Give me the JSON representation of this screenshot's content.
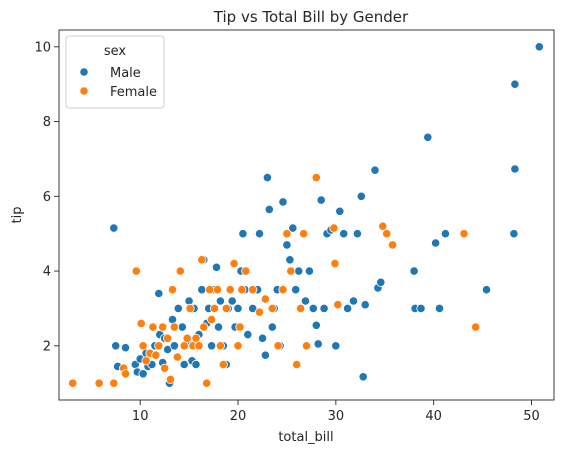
{
  "chart_data": {
    "type": "scatter",
    "title": "Tip vs Total Bill by Gender",
    "xlabel": "total_bill",
    "ylabel": "tip",
    "xlim": [
      1.7,
      52.3
    ],
    "ylim": [
      0.55,
      10.45
    ],
    "xticks": [
      10,
      20,
      30,
      40,
      50
    ],
    "yticks": [
      2,
      4,
      6,
      8,
      10
    ],
    "grid": false,
    "legend": {
      "title": "sex",
      "placement": "top-left"
    },
    "series": [
      {
        "name": "Male",
        "color": "#1f77b4",
        "points": [
          [
            7.3,
            5.15
          ],
          [
            7.5,
            2.0
          ],
          [
            7.7,
            1.45
          ],
          [
            8.5,
            1.95
          ],
          [
            9.5,
            1.5
          ],
          [
            9.7,
            1.3
          ],
          [
            10.0,
            1.65
          ],
          [
            10.3,
            1.25
          ],
          [
            10.6,
            1.8
          ],
          [
            10.8,
            1.45
          ],
          [
            11.2,
            1.5
          ],
          [
            11.5,
            2.0
          ],
          [
            11.9,
            3.4
          ],
          [
            12.0,
            2.3
          ],
          [
            12.3,
            1.55
          ],
          [
            12.5,
            2.2
          ],
          [
            12.8,
            1.9
          ],
          [
            13.0,
            1.0
          ],
          [
            13.3,
            2.7
          ],
          [
            13.5,
            2.0
          ],
          [
            13.9,
            3.0
          ],
          [
            14.3,
            2.5
          ],
          [
            14.5,
            1.5
          ],
          [
            14.8,
            2.1
          ],
          [
            15.0,
            3.2
          ],
          [
            15.3,
            1.6
          ],
          [
            15.5,
            3.0
          ],
          [
            15.7,
            1.5
          ],
          [
            16.0,
            2.3
          ],
          [
            16.3,
            3.5
          ],
          [
            16.5,
            4.3
          ],
          [
            16.8,
            2.6
          ],
          [
            17.0,
            3.0
          ],
          [
            17.3,
            2.0
          ],
          [
            17.5,
            3.5
          ],
          [
            17.8,
            4.1
          ],
          [
            18.0,
            2.5
          ],
          [
            18.2,
            3.2
          ],
          [
            18.5,
            2.0
          ],
          [
            18.8,
            1.5
          ],
          [
            19.0,
            3.0
          ],
          [
            19.4,
            3.2
          ],
          [
            19.7,
            2.5
          ],
          [
            20.0,
            3.0
          ],
          [
            20.3,
            4.0
          ],
          [
            20.5,
            5.0
          ],
          [
            20.7,
            3.5
          ],
          [
            21.0,
            2.3
          ],
          [
            21.5,
            3.0
          ],
          [
            22.0,
            3.5
          ],
          [
            22.2,
            5.0
          ],
          [
            22.5,
            2.2
          ],
          [
            22.8,
            1.75
          ],
          [
            23.0,
            6.5
          ],
          [
            23.2,
            5.65
          ],
          [
            23.5,
            2.5
          ],
          [
            23.7,
            3.0
          ],
          [
            24.0,
            3.5
          ],
          [
            24.3,
            2.0
          ],
          [
            24.6,
            5.85
          ],
          [
            25.0,
            4.7
          ],
          [
            25.3,
            4.3
          ],
          [
            25.6,
            5.15
          ],
          [
            25.9,
            3.5
          ],
          [
            26.2,
            4.0
          ],
          [
            26.9,
            3.2
          ],
          [
            27.3,
            4.0
          ],
          [
            27.7,
            3.0
          ],
          [
            28.0,
            2.55
          ],
          [
            28.2,
            2.05
          ],
          [
            28.5,
            5.9
          ],
          [
            28.8,
            3.0
          ],
          [
            29.1,
            5.0
          ],
          [
            29.5,
            5.1
          ],
          [
            30.0,
            2.0
          ],
          [
            30.4,
            5.6
          ],
          [
            30.8,
            5.0
          ],
          [
            31.2,
            3.0
          ],
          [
            31.8,
            3.2
          ],
          [
            32.2,
            5.0
          ],
          [
            32.6,
            6.0
          ],
          [
            32.8,
            1.17
          ],
          [
            33.0,
            3.1
          ],
          [
            34.0,
            6.7
          ],
          [
            34.3,
            3.55
          ],
          [
            34.6,
            3.7
          ],
          [
            38.0,
            4.0
          ],
          [
            38.1,
            3.0
          ],
          [
            38.7,
            3.0
          ],
          [
            39.4,
            7.58
          ],
          [
            40.2,
            4.75
          ],
          [
            40.6,
            3.0
          ],
          [
            41.2,
            5.0
          ],
          [
            45.4,
            3.5
          ],
          [
            48.2,
            5.0
          ],
          [
            48.3,
            9.0
          ],
          [
            48.3,
            6.73
          ],
          [
            50.8,
            10.0
          ]
        ]
      },
      {
        "name": "Female",
        "color": "#ff7f0e",
        "points": [
          [
            3.1,
            1.0
          ],
          [
            5.8,
            1.0
          ],
          [
            7.3,
            1.0
          ],
          [
            8.3,
            1.4
          ],
          [
            8.5,
            1.25
          ],
          [
            9.6,
            4.0
          ],
          [
            10.1,
            2.6
          ],
          [
            10.3,
            2.0
          ],
          [
            10.6,
            1.6
          ],
          [
            11.0,
            1.8
          ],
          [
            11.3,
            2.5
          ],
          [
            11.6,
            1.75
          ],
          [
            11.9,
            2.0
          ],
          [
            12.3,
            2.5
          ],
          [
            12.5,
            1.4
          ],
          [
            12.8,
            2.2
          ],
          [
            13.1,
            1.1
          ],
          [
            13.3,
            3.5
          ],
          [
            13.5,
            2.5
          ],
          [
            13.8,
            1.7
          ],
          [
            14.1,
            4.0
          ],
          [
            14.5,
            2.0
          ],
          [
            14.8,
            2.2
          ],
          [
            15.1,
            3.0
          ],
          [
            15.4,
            2.0
          ],
          [
            15.7,
            2.2
          ],
          [
            16.0,
            2.0
          ],
          [
            16.3,
            4.3
          ],
          [
            16.5,
            2.5
          ],
          [
            16.8,
            1.0
          ],
          [
            17.1,
            3.5
          ],
          [
            17.3,
            2.7
          ],
          [
            17.6,
            3.0
          ],
          [
            17.9,
            3.5
          ],
          [
            18.2,
            2.0
          ],
          [
            18.5,
            1.5
          ],
          [
            18.8,
            3.0
          ],
          [
            19.2,
            3.5
          ],
          [
            19.6,
            4.2
          ],
          [
            20.0,
            2.0
          ],
          [
            20.2,
            2.5
          ],
          [
            20.4,
            3.5
          ],
          [
            20.8,
            4.0
          ],
          [
            21.5,
            3.5
          ],
          [
            22.2,
            2.9
          ],
          [
            22.8,
            3.25
          ],
          [
            23.5,
            3.0
          ],
          [
            24.1,
            2.0
          ],
          [
            24.6,
            3.5
          ],
          [
            25.0,
            5.0
          ],
          [
            25.4,
            4.0
          ],
          [
            26.0,
            1.5
          ],
          [
            26.4,
            3.0
          ],
          [
            26.7,
            5.0
          ],
          [
            27.0,
            2.0
          ],
          [
            28.0,
            6.5
          ],
          [
            29.8,
            5.15
          ],
          [
            29.9,
            4.2
          ],
          [
            30.2,
            3.1
          ],
          [
            34.8,
            5.2
          ],
          [
            35.2,
            5.0
          ],
          [
            35.8,
            4.7
          ],
          [
            43.1,
            5.0
          ],
          [
            44.3,
            2.5
          ]
        ]
      }
    ]
  }
}
